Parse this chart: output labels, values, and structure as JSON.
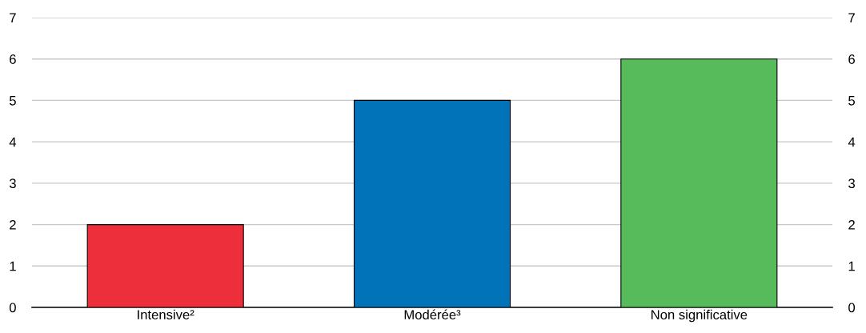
{
  "chart_data": {
    "type": "bar",
    "categories": [
      "Intensive²",
      "Modérée³",
      "Non significative"
    ],
    "values": [
      2,
      5,
      6
    ],
    "colors": [
      "#ec2f3b",
      "#0073b9",
      "#58bb5b"
    ],
    "ylim": [
      0,
      7
    ],
    "yticks": [
      0,
      1,
      2,
      3,
      4,
      5,
      6,
      7
    ],
    "y2lim": [
      0,
      7
    ],
    "y2ticks": [
      0,
      1,
      2,
      3,
      4,
      5,
      6,
      7
    ],
    "grid": "y",
    "legend": false
  }
}
